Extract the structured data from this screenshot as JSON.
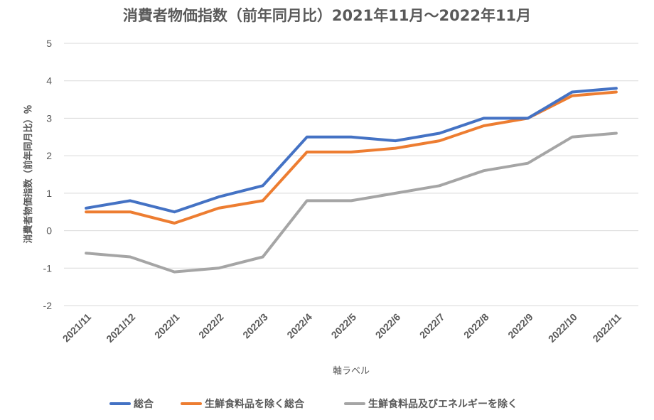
{
  "chart_data": {
    "type": "line",
    "title": "消費者物価指数（前年同月比）2021年11月～2022年11月",
    "xlabel": "軸ラベル",
    "ylabel": "消費者物価指数（前年同月比）％",
    "ylim": [
      -2,
      5
    ],
    "yticks": [
      -2,
      -1,
      0,
      1,
      2,
      3,
      4,
      5
    ],
    "grid": true,
    "legend_position": "bottom",
    "categories": [
      "2021/11",
      "2021/12",
      "2022/1",
      "2022/2",
      "2022/3",
      "2022/4",
      "2022/5",
      "2022/6",
      "2022/7",
      "2022/8",
      "2022/9",
      "2022/10",
      "2022/11"
    ],
    "series": [
      {
        "name": "総合",
        "color": "#4472c4",
        "values": [
          0.6,
          0.8,
          0.5,
          0.9,
          1.2,
          2.5,
          2.5,
          2.4,
          2.6,
          3.0,
          3.0,
          3.7,
          3.8
        ]
      },
      {
        "name": "生鮮食料品を除く総合",
        "color": "#ed7d31",
        "values": [
          0.5,
          0.5,
          0.2,
          0.6,
          0.8,
          2.1,
          2.1,
          2.2,
          2.4,
          2.8,
          3.0,
          3.6,
          3.7
        ]
      },
      {
        "name": "生鮮食料品及びエネルギーを除く",
        "color": "#a5a5a5",
        "values": [
          -0.6,
          -0.7,
          -1.1,
          -1.0,
          -0.7,
          0.8,
          0.8,
          1.0,
          1.2,
          1.6,
          1.8,
          2.5,
          2.6
        ]
      }
    ]
  }
}
